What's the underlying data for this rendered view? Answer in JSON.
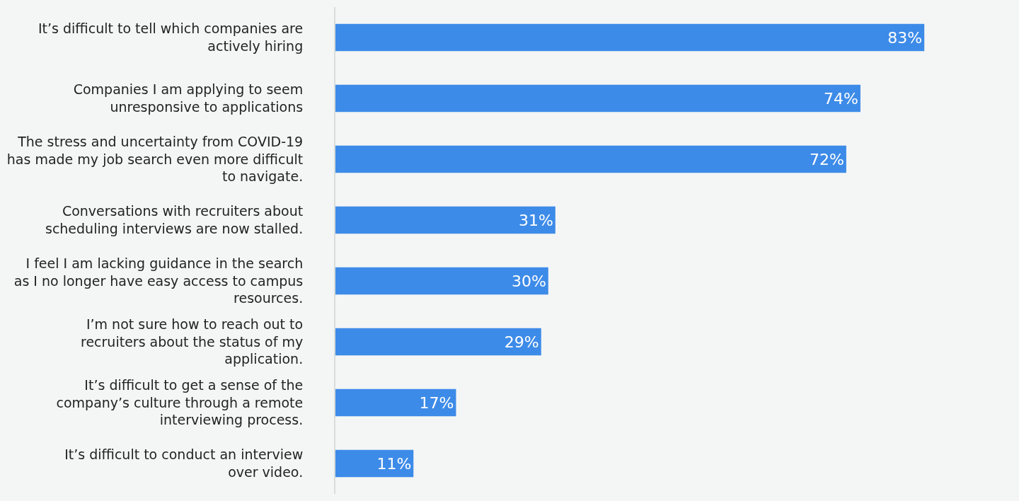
{
  "chart_data": {
    "type": "bar",
    "orientation": "horizontal",
    "categories": [
      "It’s difficult to tell which companies are actively hiring",
      "Companies I am applying to seem unresponsive to applications",
      "The stress and uncertainty from COVID-19 has made my job search even more difficult to navigate.",
      "Conversations with recruiters about scheduling interviews are now stalled.",
      "I feel I am lacking guidance in the search as I no longer have easy access to campus resources.",
      "I’m not sure how to reach out to recruiters about the status of my application.",
      "It’s difficult to get a sense of the company’s culture through a remote interviewing process.",
      "It’s difficult to conduct an interview over video."
    ],
    "values": [
      83,
      74,
      72,
      31,
      30,
      29,
      17,
      11
    ],
    "value_labels": [
      "83%",
      "74%",
      "72%",
      "31%",
      "30%",
      "29%",
      "17%",
      "11%"
    ],
    "color": "#3d8be8",
    "grid": false,
    "legend": false
  }
}
